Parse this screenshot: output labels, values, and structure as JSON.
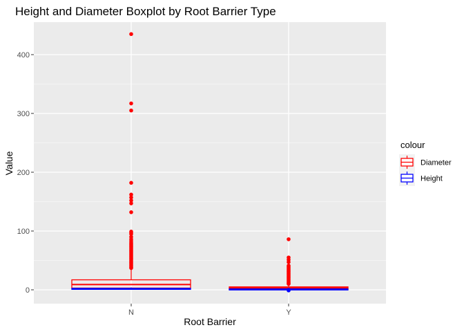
{
  "chart_data": {
    "type": "boxplot",
    "title": "Height and Diameter Boxplot by Root Barrier Type",
    "xlabel": "Root Barrier",
    "ylabel": "Value",
    "categories": [
      "N",
      "Y"
    ],
    "ylim": [
      -10,
      450
    ],
    "y_ticks": [
      0,
      100,
      200,
      300,
      400
    ],
    "grid": true,
    "legend": {
      "title": "colour",
      "placement": "right",
      "entries": [
        "Diameter",
        "Height"
      ]
    },
    "series": [
      {
        "name": "Diameter",
        "color": "#ff0000",
        "boxes": [
          {
            "category": "N",
            "q1": 3,
            "median": 9,
            "q3": 17,
            "whisker_low": 0,
            "whisker_high": 36,
            "outliers": [
              435,
              317,
              305,
              182,
              162,
              157,
              152,
              147,
              132,
              99,
              97,
              95,
              90,
              86,
              83,
              80,
              78,
              76,
              74,
              72,
              70,
              68,
              66,
              64,
              62,
              60,
              58,
              56,
              54,
              52,
              50,
              48,
              46,
              44,
              42,
              40,
              38,
              37
            ]
          },
          {
            "category": "Y",
            "q1": 1,
            "median": 3,
            "q3": 5,
            "whisker_low": 0,
            "whisker_high": 9,
            "outliers": [
              86,
              55,
              51,
              47,
              41,
              39,
              37,
              35,
              33,
              31,
              29,
              27,
              25,
              23,
              21,
              19,
              17,
              15,
              13,
              11,
              10
            ]
          }
        ]
      },
      {
        "name": "Height",
        "color": "#0000ff",
        "boxes": [
          {
            "category": "N",
            "q1": 1,
            "median": 1.5,
            "q3": 2.5,
            "whisker_low": 0,
            "whisker_high": 4,
            "outliers": []
          },
          {
            "category": "Y",
            "q1": 0.5,
            "median": 1,
            "q3": 1.5,
            "whisker_low": 0,
            "whisker_high": 2.5,
            "outliers": [
              -1,
              0
            ]
          }
        ]
      }
    ]
  }
}
